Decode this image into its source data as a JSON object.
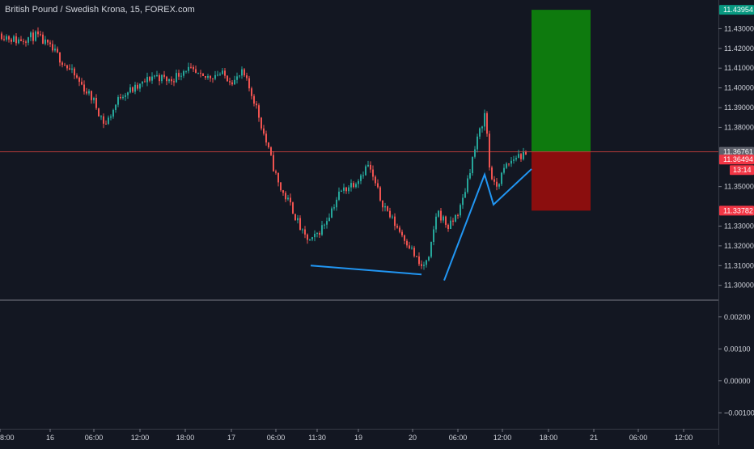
{
  "header": {
    "symbol_title": "British Pound / Swedish Krona, 15, FOREX.com"
  },
  "colors": {
    "background": "#131722",
    "up": "#26a69a",
    "down": "#ef5350",
    "profit_zone": "#0e7a0e",
    "loss_zone": "#8b0e0e",
    "drawing_line": "#2196f3",
    "label_text": "#d1d4dc",
    "divider": "#787b86"
  },
  "price_axis": {
    "ticks": [
      "11.43000",
      "11.42000",
      "11.41000",
      "11.40000",
      "11.39000",
      "11.38000",
      "11.35000",
      "11.33000",
      "11.32000",
      "11.31000",
      "11.30000"
    ],
    "tick_values": [
      11.43,
      11.42,
      11.41,
      11.4,
      11.39,
      11.38,
      11.35,
      11.33,
      11.32,
      11.31,
      11.3
    ],
    "labels": {
      "target": {
        "text": "11.43954",
        "value": 11.43954,
        "color": "#089981"
      },
      "current_market": {
        "text": "11.36761",
        "value": 11.36761,
        "color": "#5d606b"
      },
      "last_price": {
        "text": "11.36494",
        "value": 11.36494,
        "color": "#f23645"
      },
      "countdown": {
        "text": "13:14",
        "color": "#f23645"
      },
      "stop": {
        "text": "11.33782",
        "value": 11.33782,
        "color": "#f23645"
      }
    }
  },
  "indicator_axis": {
    "ticks": [
      "0.00200",
      "0.00100",
      "0.00000",
      "−0.00100"
    ],
    "tick_values": [
      0.002,
      0.001,
      0.0,
      -0.001
    ]
  },
  "time_axis": {
    "ticks": [
      "8:00",
      "16",
      "06:00",
      "12:00",
      "18:00",
      "17",
      "06:00",
      "11:30",
      "19",
      "20",
      "06:00",
      "12:00",
      "18:00",
      "21",
      "06:00",
      "12:00"
    ]
  },
  "chart_data": {
    "type": "candlestick",
    "symbol": "GBP/SEK",
    "interval": "15",
    "price_range": [
      11.2925,
      11.4445
    ],
    "indicator_range": [
      -0.0015,
      0.0025
    ],
    "position": {
      "entry": 11.36761,
      "target": 11.43954,
      "stop": 11.33782
    },
    "drawing_lines": [
      {
        "points": [
          [
            384,
            11.31
          ],
          [
            521,
            11.3055
          ]
        ]
      },
      {
        "points": [
          [
            549,
            11.3025
          ],
          [
            599,
            11.3561
          ],
          [
            610,
            11.3409
          ],
          [
            657,
            11.3589
          ]
        ]
      }
    ],
    "candle_path": [
      [
        0,
        11.4275
      ],
      [
        20,
        11.424
      ],
      [
        45,
        11.4265
      ],
      [
        70,
        11.417
      ],
      [
        95,
        11.4045
      ],
      [
        115,
        11.394
      ],
      [
        130,
        11.381
      ],
      [
        150,
        11.397
      ],
      [
        170,
        11.4
      ],
      [
        190,
        11.4065
      ],
      [
        210,
        11.4035
      ],
      [
        230,
        11.41
      ],
      [
        250,
        11.4045
      ],
      [
        270,
        11.4075
      ],
      [
        290,
        11.4035
      ],
      [
        300,
        11.4075
      ],
      [
        315,
        11.393
      ],
      [
        330,
        11.371
      ],
      [
        345,
        11.35
      ],
      [
        360,
        11.34
      ],
      [
        375,
        11.325
      ],
      [
        385,
        11.322
      ],
      [
        400,
        11.3305
      ],
      [
        420,
        11.347
      ],
      [
        440,
        11.353
      ],
      [
        455,
        11.361
      ],
      [
        470,
        11.344
      ],
      [
        485,
        11.333
      ],
      [
        505,
        11.321
      ],
      [
        520,
        11.309
      ],
      [
        530,
        11.3125
      ],
      [
        540,
        11.338
      ],
      [
        555,
        11.329
      ],
      [
        570,
        11.34
      ],
      [
        585,
        11.366
      ],
      [
        595,
        11.381
      ],
      [
        600,
        11.388
      ],
      [
        605,
        11.36
      ],
      [
        612,
        11.3485
      ],
      [
        625,
        11.36
      ],
      [
        640,
        11.366
      ],
      [
        650,
        11.3649
      ]
    ]
  }
}
